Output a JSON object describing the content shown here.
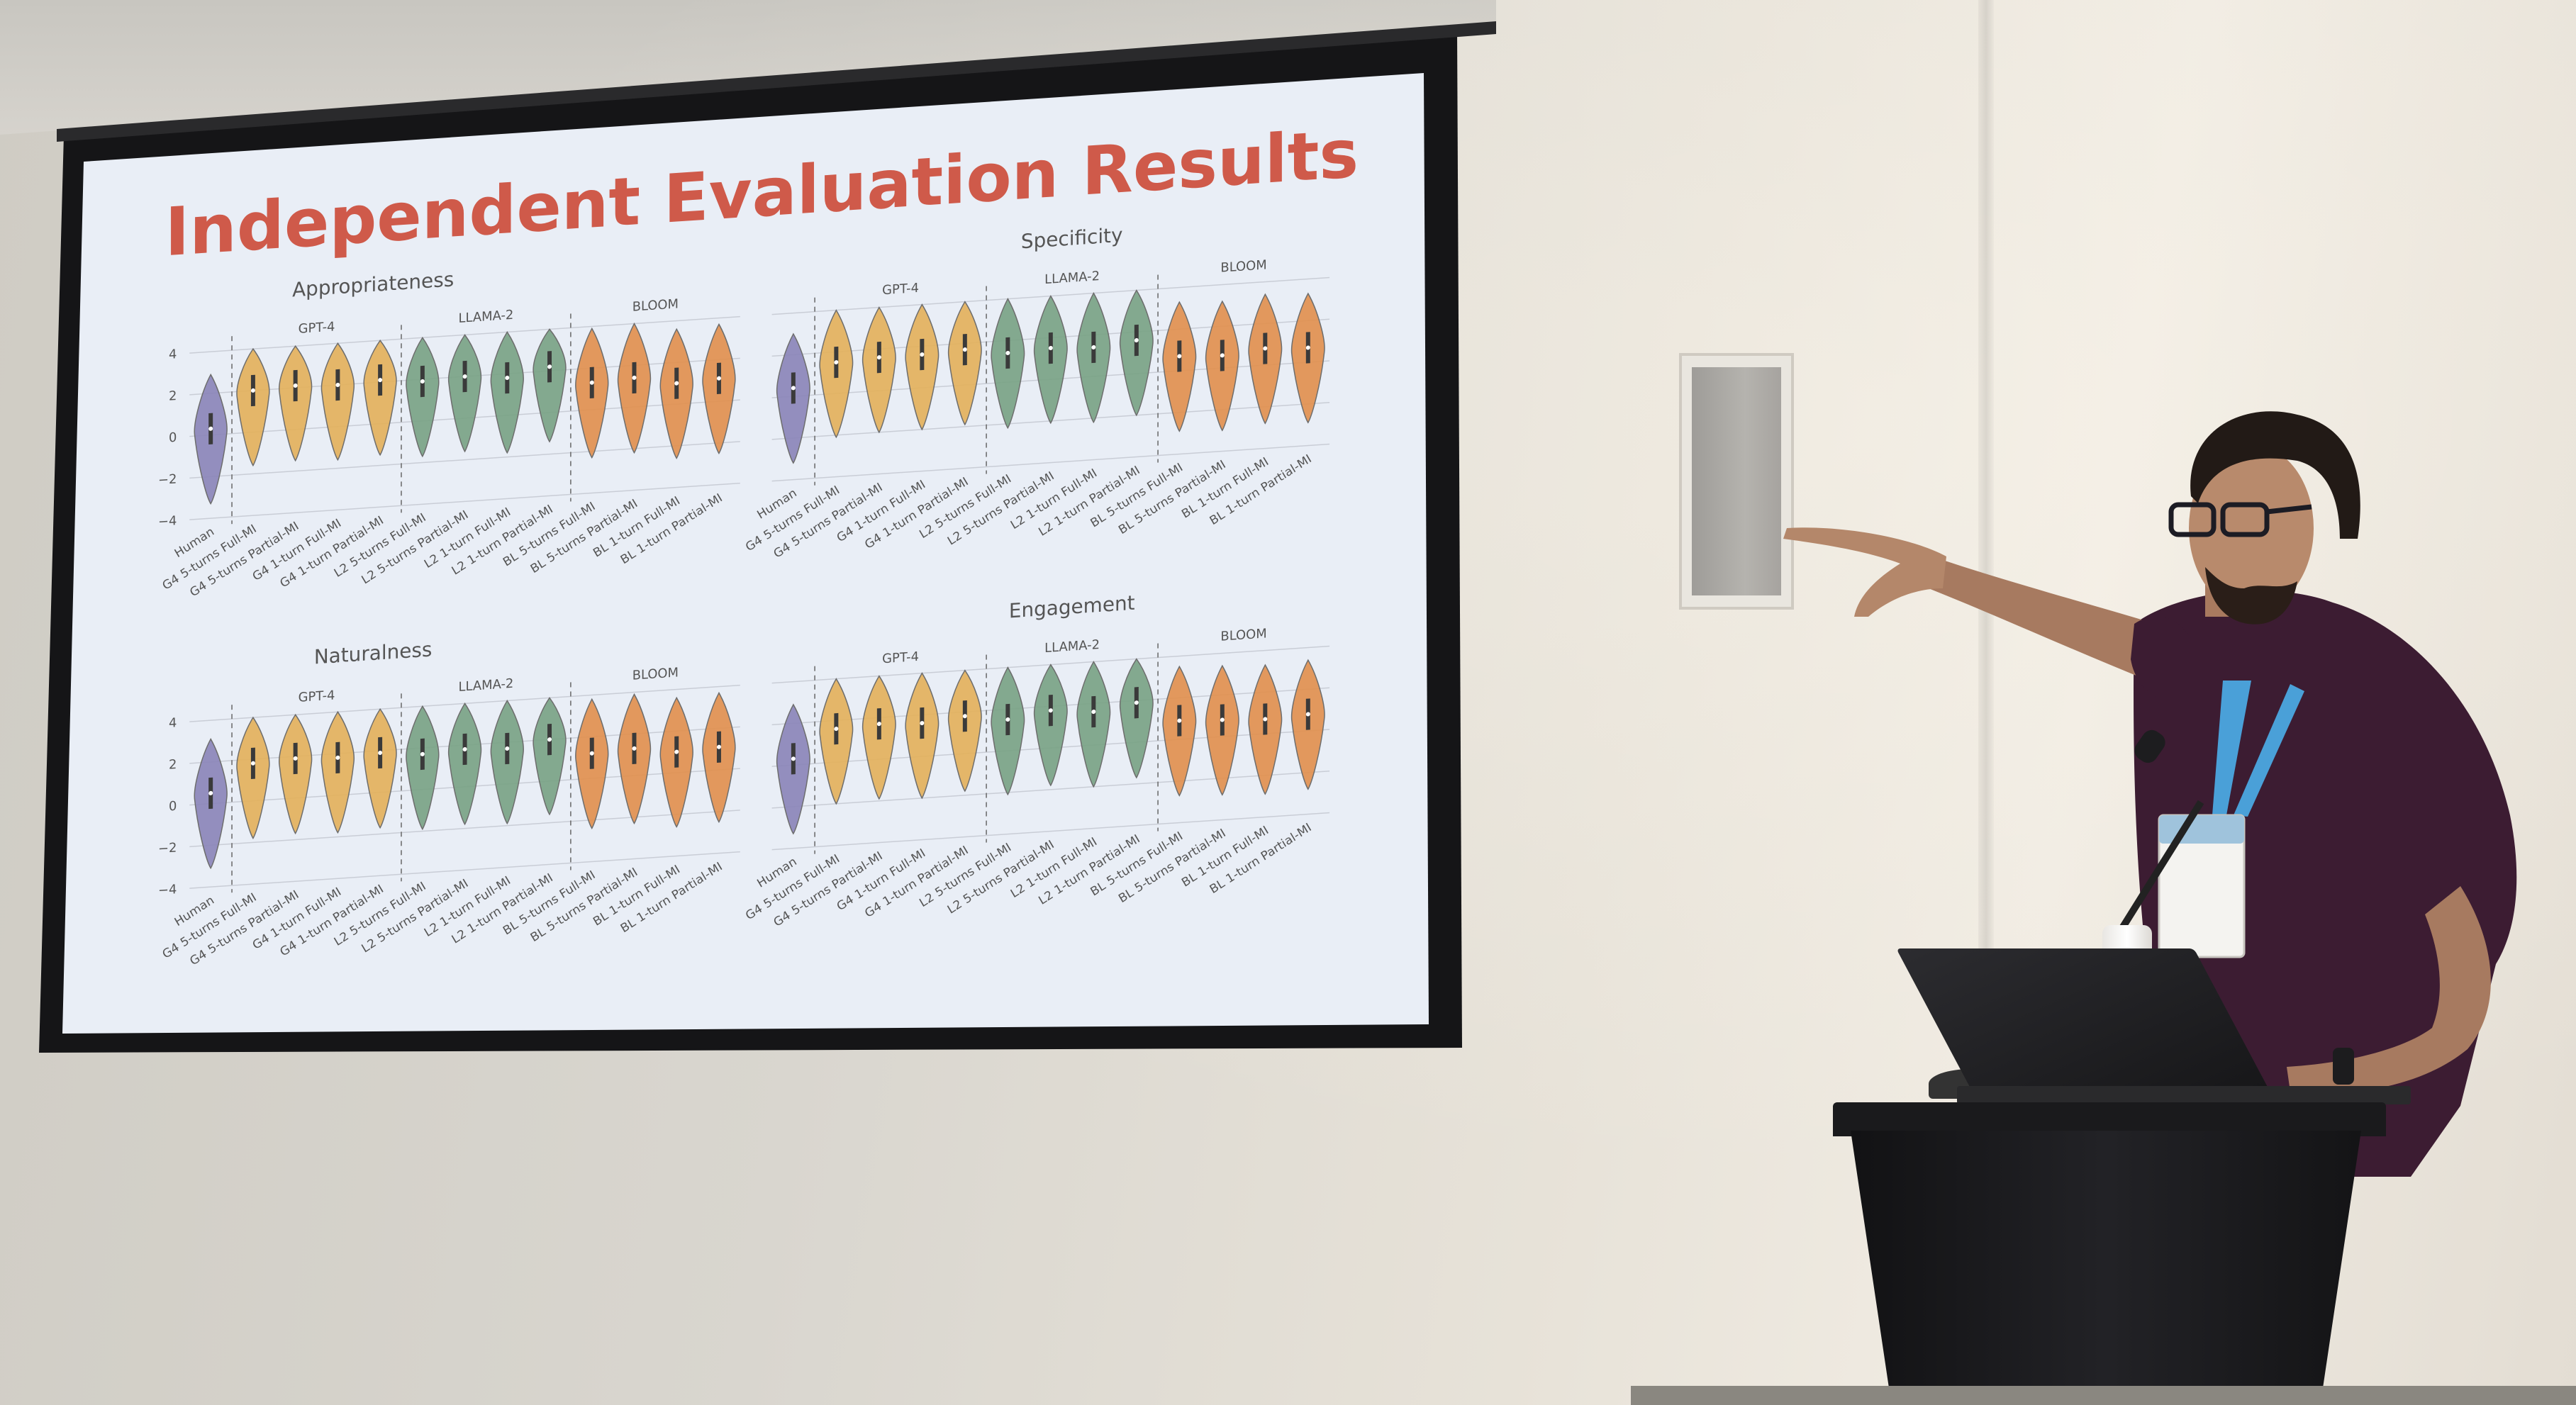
{
  "slide": {
    "title": "Independent Evaluation Results",
    "colors": {
      "title": "#cf5a4a",
      "human": "#8b86b8",
      "gpt4": "#e3b15c",
      "llama2": "#7aa386",
      "bloom": "#e1904f",
      "background": "#e9eef6"
    }
  },
  "chart_data": [
    {
      "type": "violin",
      "title": "Appropriateness",
      "groups": [
        "GPT-4",
        "LLAMA-2",
        "BLOOM"
      ],
      "yticks": [
        "4",
        "2",
        "0",
        "−2",
        "−4"
      ],
      "ylim": [
        -4,
        4
      ],
      "categories": [
        "Human",
        "G4 5-turns Full-MI",
        "G4 5-turns Partial-MI",
        "G4 1-turn Full-MI",
        "G4 1-turn Partial-MI",
        "L2 5-turns Full-MI",
        "L2 5-turns Partial-MI",
        "L2 1-turn Full-MI",
        "L2 1-turn Partial-MI",
        "BL 5-turns Full-MI",
        "BL 5-turns Partial-MI",
        "BL 1-turn Full-MI",
        "BL 1-turn Partial-MI"
      ],
      "medians": [
        0.3,
        2.0,
        2.1,
        2.0,
        2.1,
        1.9,
        2.0,
        1.8,
        2.2,
        1.3,
        1.4,
        1.0,
        1.1
      ]
    },
    {
      "type": "violin",
      "title": "Specificity",
      "groups": [
        "GPT-4",
        "LLAMA-2",
        "BLOOM"
      ],
      "yticks": [],
      "ylim": [
        -4,
        4
      ],
      "categories": [
        "Human",
        "G4 5-turns Full-MI",
        "G4 5-turns Partial-MI",
        "G4 1-turn Full-MI",
        "G4 1-turn Partial-MI",
        "L2 5-turns Full-MI",
        "L2 5-turns Partial-MI",
        "L2 1-turn Full-MI",
        "L2 1-turn Partial-MI",
        "BL 5-turns Full-MI",
        "BL 5-turns Partial-MI",
        "BL 1-turn Full-MI",
        "BL 1-turn Partial-MI"
      ],
      "medians": [
        0.4,
        1.5,
        1.6,
        1.6,
        1.7,
        1.4,
        1.5,
        1.4,
        1.6,
        0.7,
        0.6,
        0.8,
        0.7
      ]
    },
    {
      "type": "violin",
      "title": "Naturalness",
      "groups": [
        "GPT-4",
        "LLAMA-2",
        "BLOOM"
      ],
      "yticks": [
        "4",
        "2",
        "0",
        "−2",
        "−4"
      ],
      "ylim": [
        -4,
        4
      ],
      "categories": [
        "Human",
        "G4 5-turns Full-MI",
        "G4 5-turns Partial-MI",
        "G4 1-turn Full-MI",
        "G4 1-turn Partial-MI",
        "L2 5-turns Full-MI",
        "L2 5-turns Partial-MI",
        "L2 1-turn Full-MI",
        "L2 1-turn Partial-MI",
        "BL 5-turns Full-MI",
        "BL 5-turns Partial-MI",
        "BL 1-turn Full-MI",
        "BL 1-turn Partial-MI"
      ],
      "medians": [
        0.5,
        1.8,
        1.9,
        1.8,
        1.9,
        1.7,
        1.8,
        1.7,
        2.0,
        1.2,
        1.3,
        1.0,
        1.1
      ]
    },
    {
      "type": "violin",
      "title": "Engagement",
      "groups": [
        "GPT-4",
        "LLAMA-2",
        "BLOOM"
      ],
      "yticks": [],
      "ylim": [
        -4,
        4
      ],
      "categories": [
        "Human",
        "G4 5-turns Full-MI",
        "G4 5-turns Partial-MI",
        "G4 1-turn Full-MI",
        "G4 1-turn Partial-MI",
        "L2 5-turns Full-MI",
        "L2 5-turns Partial-MI",
        "L2 1-turn Full-MI",
        "L2 1-turn Partial-MI",
        "BL 5-turns Full-MI",
        "BL 5-turns Partial-MI",
        "BL 1-turn Full-MI",
        "BL 1-turn Partial-MI"
      ],
      "medians": [
        0.3,
        1.6,
        1.7,
        1.6,
        1.8,
        1.5,
        1.8,
        1.6,
        1.9,
        0.9,
        0.8,
        0.7,
        0.8
      ]
    }
  ]
}
